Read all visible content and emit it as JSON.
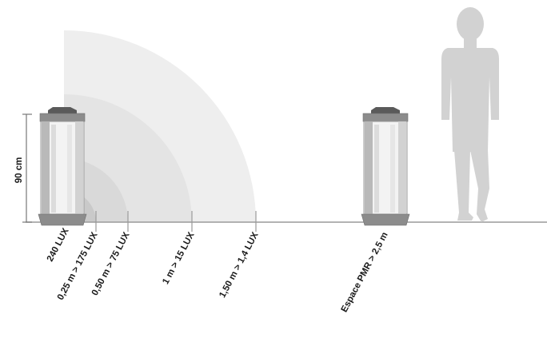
{
  "dimension": {
    "height_label": "90 cm"
  },
  "distance_labels": [
    {
      "text": "240 LUX"
    },
    {
      "text": "0,25 m > 175 LUX"
    },
    {
      "text": "0,50 m > 75 LUX"
    },
    {
      "text": "1 m > 15 LUX"
    },
    {
      "text": "1,50 m > 1,4 LUX"
    }
  ],
  "clearance_label": "Espace PMR > 2,5 m",
  "colors": {
    "zone_outer": "#eeeeee",
    "zone_mid": "#e4e4e4",
    "zone_inner": "#d9d9d9",
    "zone_core": "#c9c9c9",
    "ground": "#9a9a9a",
    "person": "#d2d2d2",
    "lamp_frame": "#8c8c8c",
    "lamp_cap": "#5a5a5a",
    "text": "#1a1a1a"
  }
}
